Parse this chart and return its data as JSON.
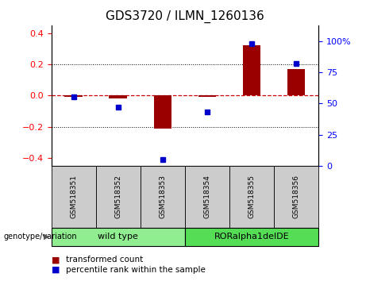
{
  "title": "GDS3720 / ILMN_1260136",
  "samples": [
    "GSM518351",
    "GSM518352",
    "GSM518353",
    "GSM518354",
    "GSM518355",
    "GSM518356"
  ],
  "red_bars": [
    -0.01,
    -0.02,
    -0.21,
    -0.01,
    0.32,
    0.17
  ],
  "blue_dots_pct": [
    55,
    47,
    5,
    43,
    98,
    82
  ],
  "groups": [
    {
      "label": "wild type",
      "indices": [
        0,
        1,
        2
      ],
      "color": "#90ee90"
    },
    {
      "label": "RORalpha1delDE",
      "indices": [
        3,
        4,
        5
      ],
      "color": "#55dd55"
    }
  ],
  "ylim_left": [
    -0.45,
    0.45
  ],
  "ylim_right": [
    0,
    112.5
  ],
  "yticks_left": [
    -0.4,
    -0.2,
    0.0,
    0.2,
    0.4
  ],
  "yticks_right": [
    0,
    25,
    50,
    75,
    100
  ],
  "ytick_labels_right": [
    "0",
    "25",
    "50",
    "75",
    "100%"
  ],
  "bar_color": "#9B0000",
  "dot_color": "#0000cc",
  "dashed_line_color": "#cc0000",
  "bg_label": "#cccccc",
  "genotype_label": "genotype/variation",
  "legend_red": "transformed count",
  "legend_blue": "percentile rank within the sample",
  "title_fontsize": 11,
  "tick_fontsize": 8,
  "sample_fontsize": 6.5,
  "group_fontsize": 8,
  "legend_fontsize": 7.5
}
